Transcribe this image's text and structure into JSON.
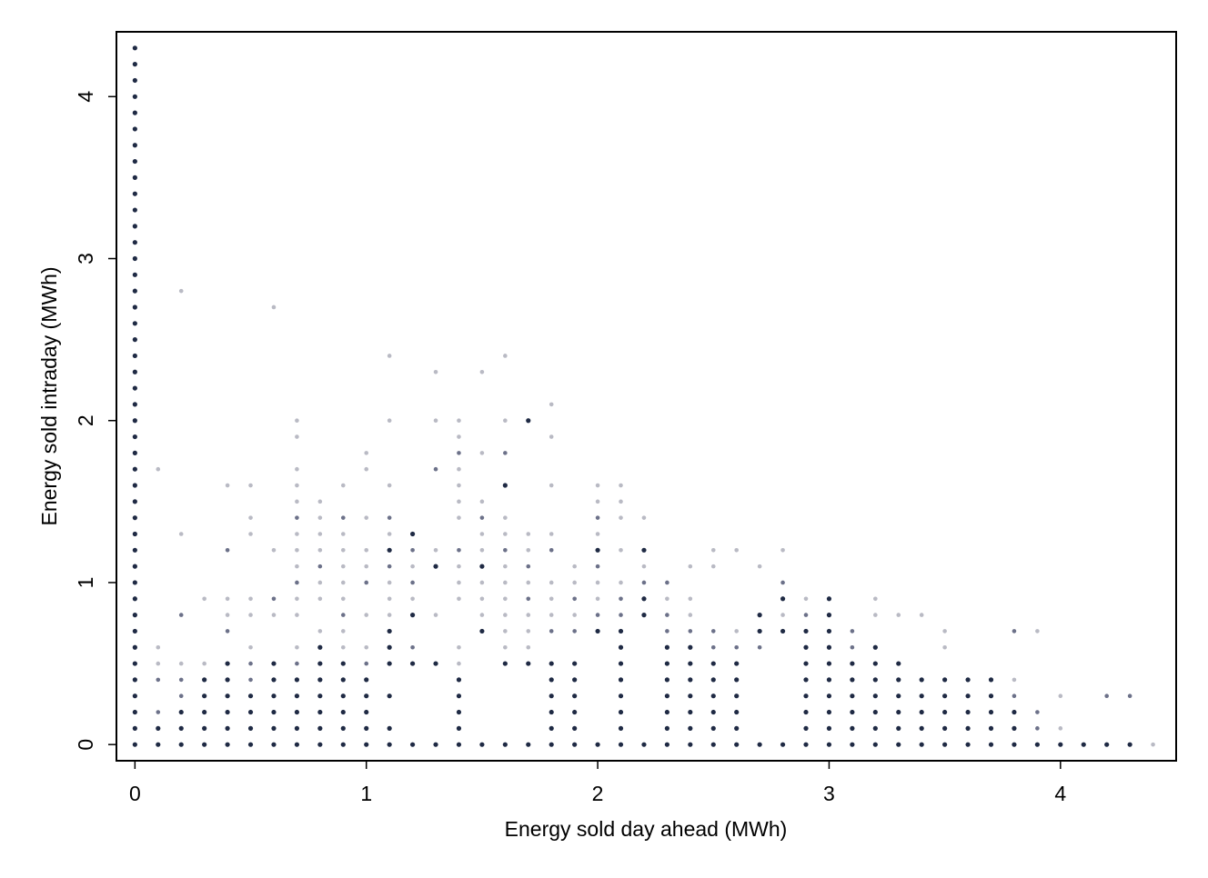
{
  "chart_data": {
    "type": "scatter",
    "xlabel": "Energy sold day ahead (MWh)",
    "ylabel": "Energy sold intraday (MWh)",
    "xlim": [
      -0.08,
      4.5
    ],
    "ylim": [
      -0.1,
      4.4
    ],
    "xticks": [
      0,
      1,
      2,
      3,
      4
    ],
    "yticks": [
      0,
      1,
      2,
      3,
      4
    ],
    "grid": false,
    "legend": "none",
    "colors": {
      "dark": "#1f2a44",
      "medium": "#6c7189",
      "light": "#b9bac4"
    },
    "point_resolution": 0.1,
    "columns": [
      {
        "x": 0,
        "dark": [
          0,
          4.3
        ]
      },
      {
        "x": 0.1,
        "dark": [
          0,
          0.1
        ],
        "medium": [
          0.2,
          0.4
        ],
        "light": [
          0.5,
          0.6,
          1.7
        ]
      },
      {
        "x": 0.2,
        "dark": [
          0,
          0.2
        ],
        "medium": [
          0.3,
          0.4,
          0.8
        ],
        "light": [
          0.5,
          1.3,
          2.8
        ]
      },
      {
        "x": 0.3,
        "dark": [
          0,
          0.4
        ],
        "light": [
          0.5,
          0.9
        ]
      },
      {
        "x": 0.4,
        "dark": [
          0,
          0.5
        ],
        "medium": [
          0.7,
          1.2
        ],
        "light": [
          0.8,
          0.9,
          1.6
        ]
      },
      {
        "x": 0.5,
        "dark": [
          0,
          0.3
        ],
        "medium": [
          0.4,
          0.5
        ],
        "light": [
          0.6,
          0.8,
          0.9,
          1.3,
          1.4,
          1.6
        ]
      },
      {
        "x": 0.6,
        "dark": [
          0,
          0.5
        ],
        "medium": [
          0.9
        ],
        "light": [
          0.8,
          1.2,
          2.7
        ]
      },
      {
        "x": 0.7,
        "dark": [
          0,
          0.4
        ],
        "medium": [
          0.5,
          1.0,
          1.4
        ],
        "light": [
          0.6,
          0.8,
          0.9,
          1.1,
          1.2,
          1.3,
          1.5,
          1.6,
          1.7,
          1.9,
          2.0
        ]
      },
      {
        "x": 0.8,
        "dark": [
          0,
          0.6
        ],
        "medium": [
          1.1
        ],
        "light": [
          0.7,
          0.9,
          1.0,
          1.2,
          1.3,
          1.4,
          1.5
        ]
      },
      {
        "x": 0.9,
        "dark": [
          0,
          0.5
        ],
        "medium": [
          0.8,
          1.4
        ],
        "light": [
          0.6,
          0.7,
          0.9,
          1.0,
          1.1,
          1.2,
          1.3,
          1.6
        ]
      },
      {
        "x": 1.0,
        "dark": [
          0,
          0.4
        ],
        "medium": [
          0.5,
          1.0
        ],
        "light": [
          0.6,
          0.8,
          1.1,
          1.2,
          1.4,
          1.7,
          1.8
        ]
      },
      {
        "x": 1.1,
        "dark": [
          0,
          0.1,
          0.3,
          0.5,
          0.6,
          0.7,
          1.2
        ],
        "medium": [
          1.1,
          1.4
        ],
        "light": [
          0.8,
          0.9,
          1.0,
          1.3,
          1.6,
          2.0,
          2.4
        ]
      },
      {
        "x": 1.2,
        "dark": [
          0,
          0.5,
          0.8,
          1.3
        ],
        "medium": [
          0.6,
          1.0,
          1.2
        ],
        "light": [
          0.9,
          1.1
        ]
      },
      {
        "x": 1.3,
        "dark": [
          0,
          0.5,
          1.1
        ],
        "medium": [
          1.7
        ],
        "light": [
          0.8,
          1.2,
          2.0,
          2.3
        ]
      },
      {
        "x": 1.4,
        "dark": [
          0,
          0.4
        ],
        "medium": [
          1.2,
          1.8
        ],
        "light": [
          0.5,
          0.6,
          0.9,
          1.0,
          1.1,
          1.4,
          1.5,
          1.6,
          1.7,
          1.9,
          2.0
        ]
      },
      {
        "x": 1.5,
        "dark": [
          0,
          0.7,
          1.1
        ],
        "medium": [
          1.4
        ],
        "light": [
          0.8,
          0.9,
          1.0,
          1.2,
          1.3,
          1.5,
          1.8,
          2.3
        ]
      },
      {
        "x": 1.6,
        "dark": [
          0,
          0.5,
          1.6
        ],
        "medium": [
          1.2,
          1.8
        ],
        "light": [
          0.6,
          0.7,
          0.8,
          0.9,
          1.0,
          1.1,
          1.3,
          1.4,
          2.0,
          2.4
        ]
      },
      {
        "x": 1.7,
        "dark": [
          0,
          0.5,
          2.0
        ],
        "medium": [
          0.9,
          1.1
        ],
        "light": [
          0.6,
          0.7,
          0.8,
          1.0,
          1.2,
          1.3
        ]
      },
      {
        "x": 1.8,
        "dark": [
          0,
          0.5
        ],
        "medium": [
          0.7,
          1.2
        ],
        "light": [
          0.8,
          0.9,
          1.0,
          1.3,
          1.6,
          1.9,
          2.1
        ]
      },
      {
        "x": 1.9,
        "dark": [
          0,
          0.5
        ],
        "medium": [
          0.7,
          0.9
        ],
        "light": [
          0.8,
          1.0,
          1.1
        ]
      },
      {
        "x": 2.0,
        "dark": [
          0,
          0.7,
          1.2
        ],
        "medium": [
          0.8,
          1.1,
          1.4
        ],
        "light": [
          0.9,
          1.0,
          1.3,
          1.5,
          1.6
        ]
      },
      {
        "x": 2.1,
        "dark": [
          0,
          0.7
        ],
        "medium": [
          0.8,
          0.9
        ],
        "light": [
          1.0,
          1.2,
          1.4,
          1.5,
          1.6
        ]
      },
      {
        "x": 2.2,
        "dark": [
          0,
          0.8,
          0.9,
          1.2
        ],
        "medium": [
          1.0
        ],
        "light": [
          1.1,
          1.4
        ]
      },
      {
        "x": 2.3,
        "dark": [
          0,
          0.6
        ],
        "medium": [
          0.7,
          0.8,
          1.0
        ],
        "light": [
          0.9
        ]
      },
      {
        "x": 2.4,
        "dark": [
          0,
          0.6
        ],
        "medium": [
          0.7
        ],
        "light": [
          0.8,
          0.9,
          1.1
        ]
      },
      {
        "x": 2.5,
        "dark": [
          0,
          0.5
        ],
        "medium": [
          0.6,
          0.7
        ],
        "light": [
          1.1,
          1.2
        ]
      },
      {
        "x": 2.6,
        "dark": [
          0,
          0.5
        ],
        "medium": [
          0.6
        ],
        "light": [
          0.7,
          1.2
        ]
      },
      {
        "x": 2.7,
        "dark": [
          0,
          0.7,
          0.8
        ],
        "medium": [
          0.6
        ],
        "light": [
          1.1
        ]
      },
      {
        "x": 2.8,
        "dark": [
          0,
          0.7,
          0.9
        ],
        "medium": [
          1.0
        ],
        "light": [
          0.8,
          1.2
        ]
      },
      {
        "x": 2.9,
        "dark": [
          0,
          0.7
        ],
        "medium": [
          0.8
        ],
        "light": [
          0.9
        ]
      },
      {
        "x": 3.0,
        "dark": [
          0,
          0.9
        ],
        "medium": [
          0.8
        ],
        "light": [
          0.7
        ]
      },
      {
        "x": 3.1,
        "dark": [
          0,
          0.5
        ],
        "medium": [
          0.6,
          0.7
        ]
      },
      {
        "x": 3.2,
        "dark": [
          0,
          0.6
        ],
        "light": [
          0.8,
          0.9
        ]
      },
      {
        "x": 3.3,
        "dark": [
          0,
          0.5
        ],
        "light": [
          0.8
        ]
      },
      {
        "x": 3.4,
        "dark": [
          0,
          0.4
        ],
        "light": [
          0.8
        ]
      },
      {
        "x": 3.5,
        "dark": [
          0,
          0.4
        ],
        "light": [
          0.6,
          0.7
        ]
      },
      {
        "x": 3.6,
        "dark": [
          0,
          0.4
        ]
      },
      {
        "x": 3.7,
        "dark": [
          0,
          0.4
        ]
      },
      {
        "x": 3.8,
        "dark": [
          0,
          0.2
        ],
        "medium": [
          0.3,
          0.7
        ],
        "light": [
          0.4
        ]
      },
      {
        "x": 3.9,
        "dark": [
          0
        ],
        "medium": [
          0.1,
          0.2
        ],
        "light": [
          0.7
        ]
      },
      {
        "x": 4.0,
        "dark": [
          0
        ],
        "light": [
          0.1,
          0.3
        ]
      },
      {
        "x": 4.1,
        "dark": [
          0
        ]
      },
      {
        "x": 4.2,
        "dark": [
          0
        ],
        "medium": [
          0.3
        ]
      },
      {
        "x": 4.3,
        "dark": [
          0
        ],
        "medium": [
          0.3
        ]
      },
      {
        "x": 4.4,
        "light": [
          0
        ]
      }
    ]
  }
}
